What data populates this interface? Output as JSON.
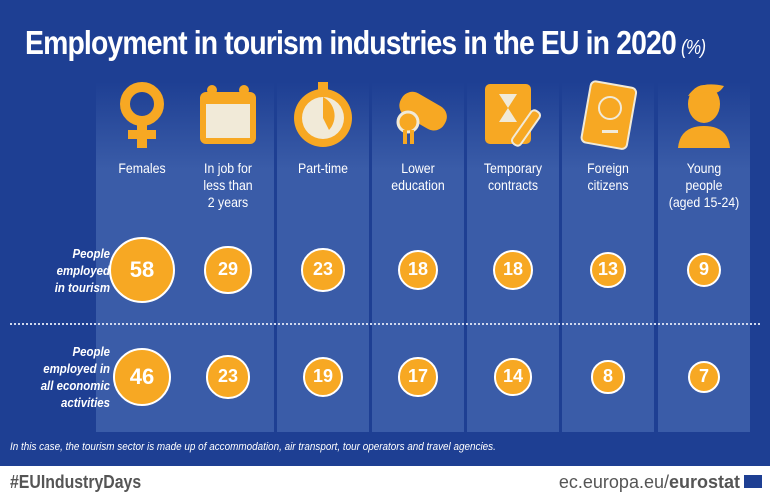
{
  "title": "Employment in tourism industries in the EU in 2020",
  "unit": "(%)",
  "chart_data": {
    "type": "bubble-table",
    "categories": [
      "Females",
      "In job for less than 2 years",
      "Part-time",
      "Lower education",
      "Temporary contracts",
      "Foreign citizens",
      "Young people (aged 15-24)"
    ],
    "series": [
      {
        "name": "People employed in tourism",
        "values": [
          58,
          29,
          23,
          18,
          18,
          13,
          9
        ]
      },
      {
        "name": "People employed in all economic activities",
        "values": [
          46,
          23,
          19,
          17,
          14,
          8,
          7
        ]
      }
    ]
  },
  "category_lines": [
    [
      "Females"
    ],
    [
      "In job for",
      "less than",
      "2 years"
    ],
    [
      "Part-time"
    ],
    [
      "Lower",
      "education"
    ],
    [
      "Temporary",
      "contracts"
    ],
    [
      "Foreign",
      "citizens"
    ],
    [
      "Young",
      "people",
      "(aged 15-24)"
    ]
  ],
  "icons": [
    "female-symbol-icon",
    "calendar-icon",
    "stopwatch-icon",
    "diploma-icon",
    "contract-hourglass-icon",
    "passport-icon",
    "young-person-icon"
  ],
  "row_labels": [
    [
      "People",
      "employed",
      "in tourism"
    ],
    [
      "People",
      "employed in",
      "all economic",
      "activities"
    ]
  ],
  "note": "In this case, the tourism sector is made up of accommodation, air transport, tour operators and travel agencies.",
  "footer": {
    "hashtag": "#EUIndustryDays",
    "site_prefix": "ec.europa.eu/",
    "site_bold": "eurostat"
  },
  "colors": {
    "background": "#1e3f93",
    "accent": "#f7a823",
    "band": "#3a5ca8"
  }
}
